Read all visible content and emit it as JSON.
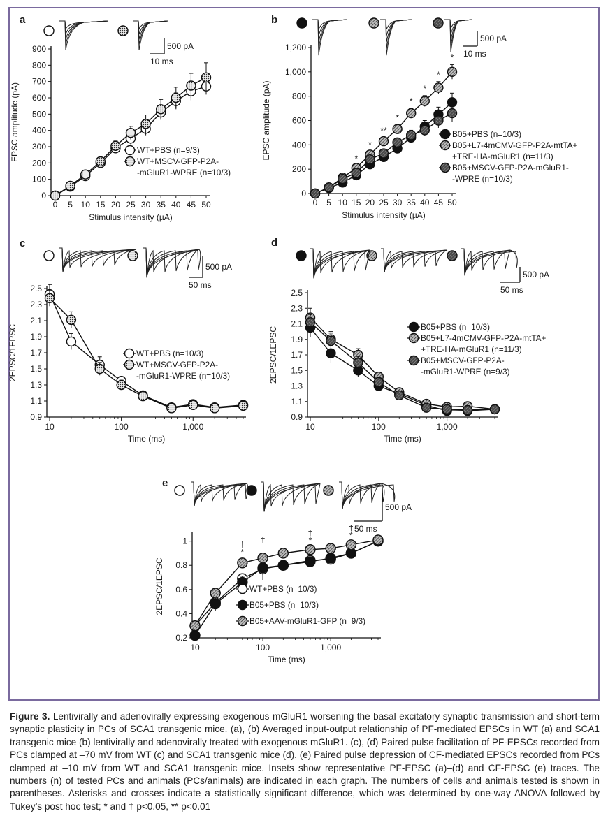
{
  "colors": {
    "frame": "#7a6a9e",
    "marker_open": "#ffffff",
    "marker_filled": "#111111",
    "marker_dotted": "#ececec",
    "marker_hatched": "#9a9a9a",
    "trace": "#222222"
  },
  "chart_data": [
    {
      "panel": "a",
      "type": "line",
      "xlabel": "Stimulus intensity (µA)",
      "ylabel": "EPSC amplitude (pA)",
      "x": [
        0,
        5,
        10,
        15,
        20,
        25,
        30,
        35,
        40,
        45,
        50
      ],
      "x_ticks": [
        "0",
        "5",
        "10",
        "15",
        "20",
        "25",
        "30",
        "35",
        "40",
        "45",
        "50"
      ],
      "ylim": [
        0,
        900
      ],
      "y_ticks": [
        "0",
        "100",
        "200",
        "300",
        "400",
        "500",
        "600",
        "700",
        "800",
        "900"
      ],
      "scale_bar": [
        "500 pA",
        "10 ms"
      ],
      "insets": [
        "open",
        "dotted"
      ],
      "series": [
        {
          "name": "WT+PBS (n=9/3)",
          "marker": "open",
          "values": [
            0,
            55,
            120,
            200,
            290,
            350,
            410,
            510,
            580,
            640,
            670
          ],
          "errors": [
            0,
            8,
            15,
            20,
            30,
            35,
            40,
            45,
            50,
            55,
            50
          ]
        },
        {
          "name": "WT+MSCV-GFP-P2A--mGluR1-WPRE (n=10/3)",
          "marker": "dotted",
          "values": [
            0,
            60,
            130,
            210,
            305,
            385,
            440,
            530,
            600,
            675,
            725
          ],
          "errors": [
            0,
            8,
            15,
            20,
            30,
            40,
            55,
            60,
            65,
            75,
            90
          ]
        }
      ],
      "legend": [
        "WT+PBS (n=9/3)",
        "WT+MSCV-GFP-P2A-",
        "-mGluR1-WPRE (n=10/3)"
      ]
    },
    {
      "panel": "b",
      "type": "line",
      "xlabel": "Stimulus intensity (µA)",
      "ylabel": "EPSC amplitude (pA)",
      "x": [
        0,
        5,
        10,
        15,
        20,
        25,
        30,
        35,
        40,
        45,
        50
      ],
      "x_ticks": [
        "0",
        "5",
        "10",
        "15",
        "20",
        "25",
        "30",
        "35",
        "40",
        "45",
        "50"
      ],
      "ylim": [
        0,
        1200
      ],
      "y_ticks": [
        "0",
        "200",
        "400",
        "600",
        "800",
        "1,000",
        "1,200"
      ],
      "scale_bar": [
        "500 pA",
        "10 ms"
      ],
      "insets": [
        "filled",
        "hatched",
        "dark-hatched"
      ],
      "significance": [
        {
          "x": 15,
          "mark": "*"
        },
        {
          "x": 20,
          "mark": "*"
        },
        {
          "x": 25,
          "mark": "**"
        },
        {
          "x": 30,
          "mark": "*"
        },
        {
          "x": 35,
          "mark": "*"
        },
        {
          "x": 40,
          "mark": "*"
        },
        {
          "x": 45,
          "mark": "*"
        },
        {
          "x": 50,
          "mark": "*"
        }
      ],
      "series": [
        {
          "name": "B05+PBS (n=10/3)",
          "marker": "filled",
          "values": [
            0,
            45,
            90,
            150,
            240,
            300,
            370,
            460,
            550,
            650,
            750
          ],
          "errors": [
            0,
            8,
            15,
            20,
            25,
            30,
            35,
            45,
            50,
            60,
            75
          ]
        },
        {
          "name": "B05+L7-4mCMV-GFP-P2A-mtTA++TRE-HA-mGluR1 (n=11/3)",
          "marker": "hatched",
          "values": [
            0,
            50,
            130,
            210,
            320,
            430,
            530,
            660,
            760,
            870,
            1000
          ],
          "errors": [
            0,
            8,
            15,
            20,
            25,
            30,
            35,
            40,
            45,
            50,
            60
          ]
        },
        {
          "name": "B05+MSCV-GFP-P2A-mGluR1--WPRE (n=10/3)",
          "marker": "darkhatch",
          "values": [
            0,
            50,
            120,
            170,
            280,
            330,
            420,
            480,
            520,
            600,
            660
          ],
          "errors": [
            0,
            8,
            15,
            20,
            25,
            30,
            35,
            40,
            45,
            60,
            70
          ]
        }
      ],
      "legend": [
        "B05+PBS (n=10/3)",
        "B05+L7-4mCMV-GFP-P2A-mtTA+",
        "+TRE-HA-mGluR1 (n=11/3)",
        "B05+MSCV-GFP-P2A-mGluR1-",
        "-WPRE (n=10/3)"
      ]
    },
    {
      "panel": "c",
      "type": "line",
      "xscale": "log",
      "xlabel": "Time (ms)",
      "ylabel": "2EPSC/1EPSC",
      "x": [
        10,
        20,
        50,
        100,
        200,
        500,
        1000,
        2000,
        5000
      ],
      "x_ticks": [
        "10",
        "100",
        "1,000"
      ],
      "ylim": [
        0.9,
        2.5
      ],
      "y_ticks": [
        "0.9",
        "1.1",
        "1.3",
        "1.5",
        "1.7",
        "1.9",
        "2.1",
        "2.3",
        "2.5"
      ],
      "scale_bar": [
        "500 pA",
        "50 ms"
      ],
      "insets": [
        "open",
        "dotted"
      ],
      "series": [
        {
          "name": "WT+PBS (n=10/3)",
          "marker": "open",
          "values": [
            2.43,
            1.84,
            1.55,
            1.35,
            1.17,
            1.02,
            1.06,
            1.02,
            1.05
          ],
          "errors": [
            0.12,
            0.1,
            0.1,
            0.05,
            0.04,
            0.04,
            0.03,
            0.03,
            0.03
          ]
        },
        {
          "name": "WT+MSCV-GFP-P2A--mGluR1-WPRE (n=10/3)",
          "marker": "dotted",
          "values": [
            2.38,
            2.11,
            1.5,
            1.3,
            1.16,
            1.01,
            1.05,
            1.01,
            1.04
          ],
          "errors": [
            0.1,
            0.1,
            0.08,
            0.06,
            0.04,
            0.04,
            0.03,
            0.03,
            0.03
          ]
        }
      ],
      "legend": [
        "WT+PBS (n=10/3)",
        "WT+MSCV-GFP-P2A-",
        "-mGluR1-WPRE (n=10/3)"
      ]
    },
    {
      "panel": "d",
      "type": "line",
      "xscale": "log",
      "xlabel": "Time (ms)",
      "ylabel": "2EPSC/1EPSC",
      "x": [
        10,
        20,
        50,
        100,
        200,
        500,
        1000,
        2000,
        5000
      ],
      "x_ticks": [
        "10",
        "100",
        "1,000"
      ],
      "ylim": [
        0.9,
        2.5
      ],
      "y_ticks": [
        "0.9",
        "1.1",
        "1.3",
        "1.5",
        "1.7",
        "1.9",
        "2.1",
        "2.3",
        "2.5"
      ],
      "scale_bar": [
        "500 pA",
        "50 ms"
      ],
      "insets": [
        "filled",
        "hatched",
        "dark-hatched"
      ],
      "series": [
        {
          "name": "B05+PBS (n=10/3)",
          "marker": "filled",
          "values": [
            2.05,
            1.72,
            1.5,
            1.3,
            1.2,
            1.05,
            0.98,
            0.98,
            1.0
          ],
          "errors": [
            0.12,
            0.12,
            0.08,
            0.06,
            0.04,
            0.04,
            0.03,
            0.03,
            0.03
          ]
        },
        {
          "name": "B05+L7-4mCMV-GFP-P2A-mtTA++TRE-HA-mGluR1 (n=11/3)",
          "marker": "hatched",
          "values": [
            2.18,
            1.9,
            1.7,
            1.42,
            1.22,
            1.07,
            1.03,
            1.04,
            1.0
          ],
          "errors": [
            0.12,
            0.1,
            0.08,
            0.06,
            0.05,
            0.04,
            0.03,
            0.03,
            0.03
          ]
        },
        {
          "name": "B05+MSCV-GFP-P2A--mGluR1-WPRE (n=9/3)",
          "marker": "darkhatch",
          "values": [
            2.12,
            1.88,
            1.6,
            1.35,
            1.18,
            1.02,
            1.0,
            0.99,
            1.0
          ],
          "errors": [
            0.1,
            0.1,
            0.08,
            0.06,
            0.04,
            0.04,
            0.03,
            0.03,
            0.03
          ]
        }
      ],
      "legend": [
        "B05+PBS (n=10/3)",
        "B05+L7-4mCMV-GFP-P2A-mtTA+",
        "+TRE-HA-mGluR1 (n=11/3)",
        "B05+MSCV-GFP-P2A-",
        "-mGluR1-WPRE (n=9/3)"
      ]
    },
    {
      "panel": "e",
      "type": "line",
      "xscale": "log",
      "xlabel": "Time (ms)",
      "ylabel": "2EPSC/1EPSC",
      "x": [
        10,
        20,
        50,
        100,
        200,
        500,
        1000,
        2000,
        5000
      ],
      "x_ticks": [
        "10",
        "100",
        "1,000"
      ],
      "ylim": [
        0.2,
        1.05
      ],
      "y_ticks": [
        "0.2",
        "0.4",
        "0.6",
        "0.8",
        "1"
      ],
      "scale_bar": [
        "500 pA",
        "50 ms"
      ],
      "insets": [
        "open",
        "filled",
        "hatched"
      ],
      "significance": [
        {
          "x": 50,
          "mark": "†"
        },
        {
          "x": 50,
          "mark": "*"
        },
        {
          "x": 100,
          "mark": "†"
        },
        {
          "x": 500,
          "mark": "†"
        },
        {
          "x": 500,
          "mark": "*"
        },
        {
          "x": 2000,
          "mark": "†"
        },
        {
          "x": 2000,
          "mark": "*"
        }
      ],
      "series": [
        {
          "name": "WT+PBS (n=10/3)",
          "marker": "open",
          "values": [
            0.3,
            0.49,
            0.69,
            0.77,
            0.8,
            0.84,
            0.85,
            0.9,
            1.0
          ],
          "errors": [
            0.03,
            0.05,
            0.04,
            0.05,
            0.04,
            0.02,
            0.02,
            0.02,
            0.01
          ]
        },
        {
          "name": "B05+PBS (n=10/3)",
          "marker": "filled",
          "values": [
            0.22,
            0.48,
            0.66,
            0.78,
            0.8,
            0.83,
            0.86,
            0.9,
            1.0
          ],
          "errors": [
            0.03,
            0.06,
            0.05,
            0.1,
            0.04,
            0.03,
            0.02,
            0.02,
            0.01
          ]
        },
        {
          "name": "B05+AAV-mGluR1-GFP (n=9/3)",
          "marker": "hatched",
          "values": [
            0.3,
            0.57,
            0.82,
            0.86,
            0.9,
            0.93,
            0.94,
            0.97,
            1.01
          ],
          "errors": [
            0.03,
            0.04,
            0.03,
            0.03,
            0.02,
            0.02,
            0.02,
            0.02,
            0.01
          ]
        }
      ],
      "legend": [
        "WT+PBS (n=10/3)",
        "B05+PBS (n=10/3)",
        "B05+AAV-mGluR1-GFP (n=9/3)"
      ]
    }
  ],
  "caption": {
    "label": "Figure 3.",
    "text": "Lentivirally and adenovirally expressing exogenous mGluR1 worsening the basal excitatory synaptic transmission and short-term synaptic plasticity in PCs of SCA1 transgenic mice. (a), (b) Averaged input-output relationship of PF-mediated EPSCs in WT (a) and SCA1 transgenic mice (b) lentivirally and adenovirally treated with exogenous mGluR1. (c), (d) Paired pulse facilitation of PF-EPSCs recorded from PCs clamped at –70 mV from WT (c) and SCA1 transgenic mice (d). (e) Paired pulse depression of CF-mediated EPSCs recorded from PCs clamped at –10 mV from WT and SCA1 transgenic mice. Insets show representative PF-EPSC (a)–(d) and CF-EPSC (e) traces. The numbers (n) of tested PCs and animals (PCs/animals) are indicated in each graph. The numbers of cells and animals tested is shown in parentheses. Asterisks and crosses indicate a statistically significant difference, which was determined by one-way ANOVA followed by Tukey’s post hoc test; * and † p<0.05, ** p<0.01"
  }
}
